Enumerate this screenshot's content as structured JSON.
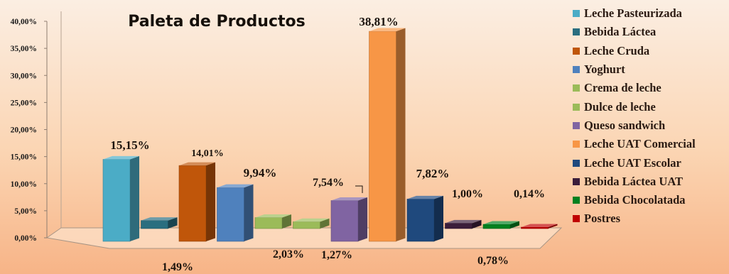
{
  "chart_data": {
    "type": "bar",
    "title": "Paleta de Productos",
    "xlabel": "",
    "ylabel": "",
    "ylim": [
      0,
      0.4
    ],
    "y_ticks": [
      "0,00%",
      "5,00%",
      "10,00%",
      "15,00%",
      "20,00%",
      "25,00%",
      "30,00%",
      "35,00%",
      "40,00%"
    ],
    "gridlines": false,
    "legend_position": "right",
    "three_d": true,
    "categories": [
      "Leche Pasteurizada",
      "Bebida Láctea",
      "Leche Cruda",
      "Yoghurt",
      "Crema de leche",
      "Dulce de leche",
      "Queso sandwich",
      "Leche UAT Comercial",
      "Leche UAT Escolar",
      "Bebida Láctea UAT",
      "Bebida Chocolatada",
      "Postres"
    ],
    "series": [
      {
        "values": [
          0.1515,
          0.0149,
          0.1401,
          0.0994,
          0.0203,
          0.0127,
          0.0754,
          0.3881,
          0.0782,
          0.01,
          0.0078,
          0.0014
        ],
        "labels": [
          "15,15%",
          "1,49%",
          "14,01%",
          "9,94%",
          "2,03%",
          "1,27%",
          "7,54%",
          "38,81%",
          "7,82%",
          "1,00%",
          "0,78%",
          "0,14%"
        ]
      }
    ],
    "colors": [
      "#4bacc6",
      "#2a6e7f",
      "#c0560a",
      "#4f81bd",
      "#9bbb59",
      "#9bbb59",
      "#8064a2",
      "#f79646",
      "#1f497d",
      "#3b1d3a",
      "#00801f",
      "#c00000"
    ]
  }
}
